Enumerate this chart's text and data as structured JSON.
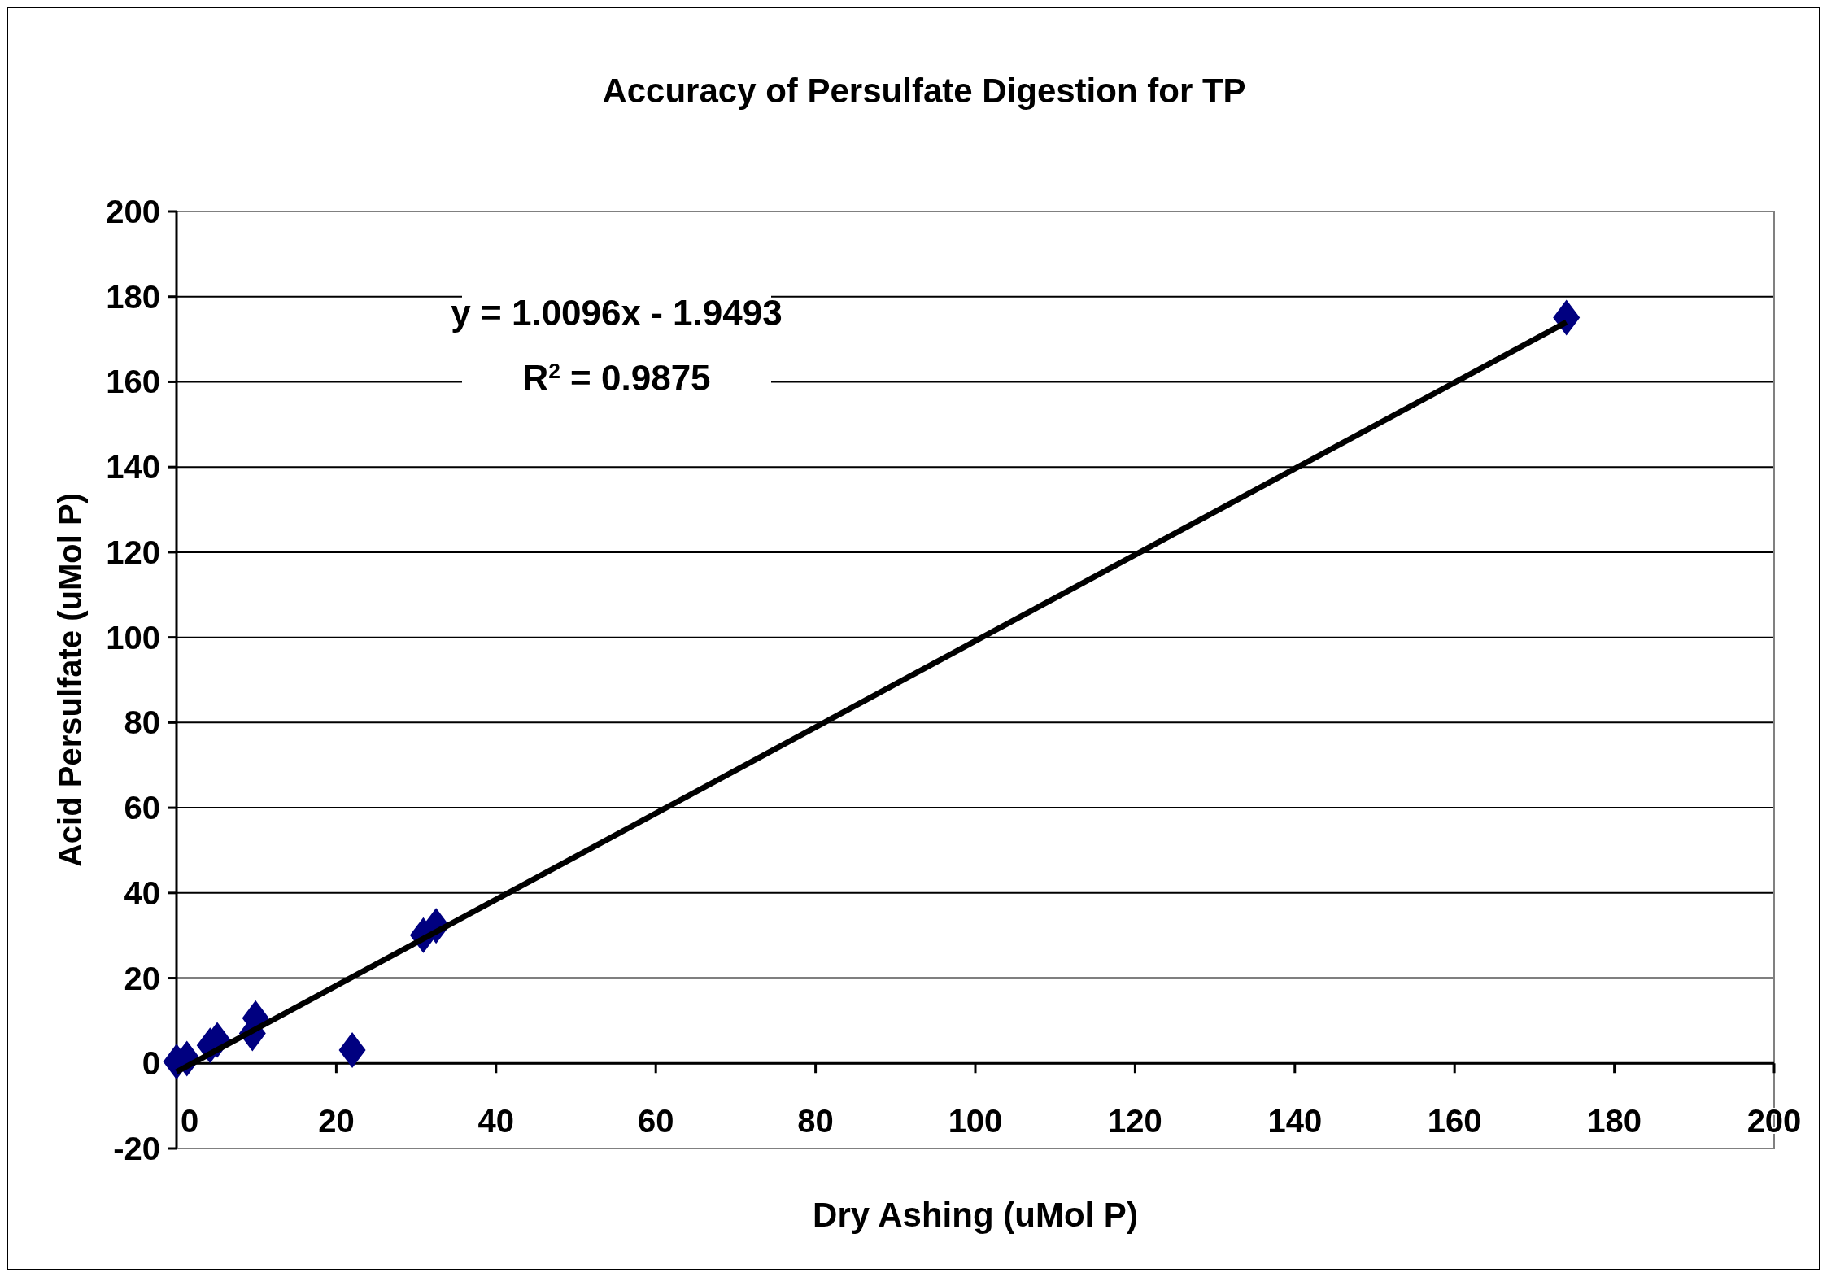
{
  "chart_data": {
    "type": "scatter",
    "title": "Accuracy of Persulfate Digestion for TP",
    "xlabel": "Dry Ashing (uMol P)",
    "ylabel": "Acid Persulfate (uMol P)",
    "series": [
      {
        "marker": "diamond",
        "color": "#000080",
        "x": [
          0,
          1.3,
          4.2,
          5.1,
          9.5,
          9.9,
          22.0,
          30.9,
          32.5,
          174.0
        ],
        "values": [
          0.4,
          1.1,
          4.2,
          5.5,
          7.0,
          10.6,
          3.1,
          30.1,
          32.3,
          175.1
        ]
      },
      {
        "type": "line",
        "marker": "none",
        "color": "#000000",
        "x": [
          0,
          174
        ],
        "values": [
          -2,
          174
        ]
      }
    ],
    "annotations": [
      "y = 1.0096x - 1.9493",
      "R$^{2}$ = 0.9875"
    ],
    "xlim": [
      0,
      200
    ],
    "xticks": [
      0,
      20,
      40,
      60,
      80,
      100,
      120,
      140,
      160,
      180,
      200
    ],
    "ylim": [
      -20,
      200
    ],
    "yticks": [
      -20,
      0,
      20,
      40,
      60,
      80,
      100,
      120,
      140,
      160,
      180,
      200
    ],
    "grid": "y",
    "line_style": "solid"
  }
}
